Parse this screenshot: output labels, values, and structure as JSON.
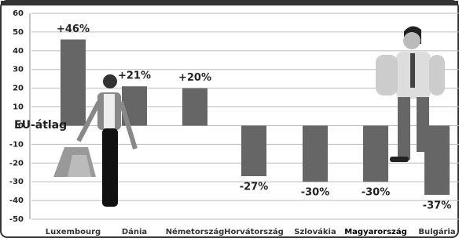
{
  "chart_data": {
    "type": "bar",
    "annotation": "EU-átlag",
    "categories": [
      "Luxembourg",
      "Dánia",
      "Németország",
      "Horvátország",
      "Szlovákia",
      "Magyarország",
      "Bulgária"
    ],
    "values": [
      46,
      21,
      20,
      -27,
      -30,
      -30,
      -37
    ],
    "value_labels": [
      "+46%",
      "+21%",
      "+20%",
      "-27%",
      "-30%",
      "-30%",
      "-37%"
    ],
    "color": "#666666",
    "ylim": [
      -50,
      60
    ],
    "yticks": [
      -50,
      -40,
      -30,
      -20,
      -10,
      0,
      10,
      20,
      30,
      40,
      50,
      60
    ],
    "grid": true
  }
}
